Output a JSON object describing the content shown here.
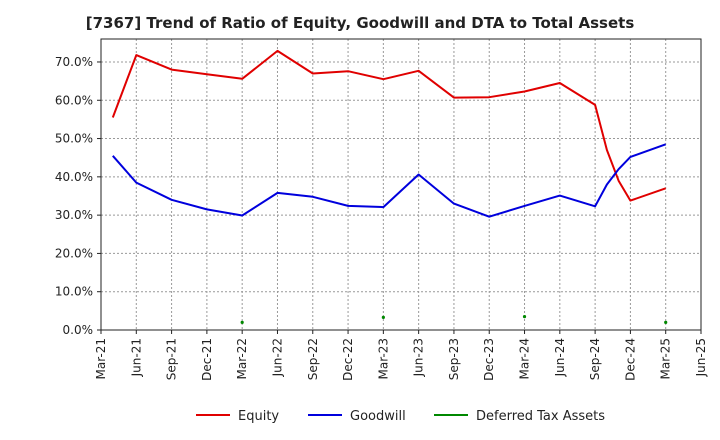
{
  "chart_data": {
    "type": "line",
    "title": "[7367]  Trend of Ratio of Equity, Goodwill and DTA to Total Assets",
    "xlabel": "",
    "ylabel": "",
    "x_ticks": [
      "Mar-21",
      "Jun-21",
      "Sep-21",
      "Dec-21",
      "Mar-22",
      "Jun-22",
      "Sep-22",
      "Dec-22",
      "Mar-23",
      "Jun-23",
      "Sep-23",
      "Dec-23",
      "Mar-24",
      "Jun-24",
      "Sep-24",
      "Dec-24",
      "Mar-25",
      "Jun-25"
    ],
    "y_ticks": [
      "0.0%",
      "10.0%",
      "20.0%",
      "30.0%",
      "40.0%",
      "50.0%",
      "60.0%",
      "70.0%"
    ],
    "ylim": [
      0,
      76
    ],
    "grid": true,
    "legend_position": "bottom",
    "series": [
      {
        "name": "Equity",
        "color": "#e00000",
        "points": [
          {
            "x": "Apr-21",
            "y": 55.5
          },
          {
            "x": "Jun-21",
            "y": 71.8
          },
          {
            "x": "Sep-21",
            "y": 68.0
          },
          {
            "x": "Dec-21",
            "y": 66.8
          },
          {
            "x": "Mar-22",
            "y": 65.6
          },
          {
            "x": "Jun-22",
            "y": 72.9
          },
          {
            "x": "Sep-22",
            "y": 67.0
          },
          {
            "x": "Dec-22",
            "y": 67.6
          },
          {
            "x": "Mar-23",
            "y": 65.5
          },
          {
            "x": "Jun-23",
            "y": 67.7
          },
          {
            "x": "Sep-23",
            "y": 60.7
          },
          {
            "x": "Dec-23",
            "y": 60.8
          },
          {
            "x": "Mar-24",
            "y": 62.3
          },
          {
            "x": "Jun-24",
            "y": 64.5
          },
          {
            "x": "Sep-24",
            "y": 58.8
          },
          {
            "x": "Oct-24",
            "y": 47.0
          },
          {
            "x": "Nov-24",
            "y": 39.0
          },
          {
            "x": "Dec-24",
            "y": 33.8
          },
          {
            "x": "Mar-25",
            "y": 37.0
          }
        ]
      },
      {
        "name": "Goodwill",
        "color": "#0000dd",
        "points": [
          {
            "x": "Apr-21",
            "y": 45.5
          },
          {
            "x": "Jun-21",
            "y": 38.5
          },
          {
            "x": "Sep-21",
            "y": 34.0
          },
          {
            "x": "Dec-21",
            "y": 31.5
          },
          {
            "x": "Mar-22",
            "y": 29.9
          },
          {
            "x": "Jun-22",
            "y": 35.8
          },
          {
            "x": "Sep-22",
            "y": 34.8
          },
          {
            "x": "Dec-22",
            "y": 32.4
          },
          {
            "x": "Mar-23",
            "y": 32.1
          },
          {
            "x": "Jun-23",
            "y": 40.6
          },
          {
            "x": "Sep-23",
            "y": 33.0
          },
          {
            "x": "Dec-23",
            "y": 29.6
          },
          {
            "x": "Mar-24",
            "y": 32.4
          },
          {
            "x": "Jun-24",
            "y": 35.1
          },
          {
            "x": "Sep-24",
            "y": 32.3
          },
          {
            "x": "Oct-24",
            "y": 38.0
          },
          {
            "x": "Nov-24",
            "y": 42.0
          },
          {
            "x": "Dec-24",
            "y": 45.2
          },
          {
            "x": "Mar-25",
            "y": 48.5
          }
        ]
      },
      {
        "name": "Deferred Tax Assets",
        "color": "#008800",
        "points": [
          {
            "x": "Mar-22",
            "y": 2.0
          },
          {
            "x": "Mar-23",
            "y": 3.3
          },
          {
            "x": "Mar-24",
            "y": 3.5
          },
          {
            "x": "Mar-25",
            "y": 2.0
          }
        ]
      }
    ]
  }
}
